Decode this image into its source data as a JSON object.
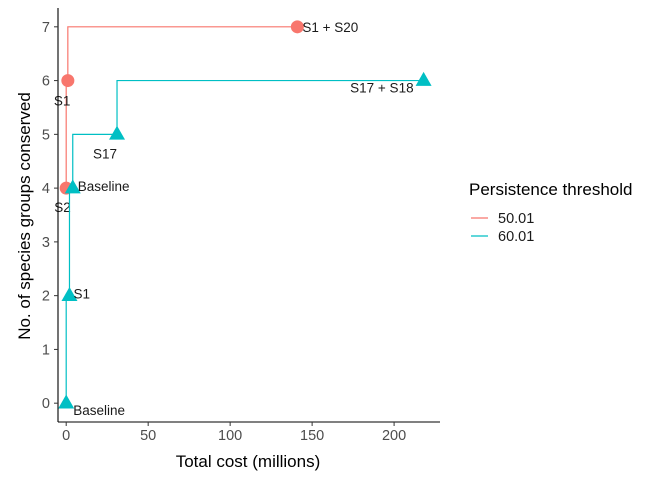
{
  "chart_data": {
    "type": "line",
    "title": "",
    "xlabel": "Total cost (millions)",
    "ylabel": "No. of species groups conserved",
    "xlim": [
      -5,
      228
    ],
    "ylim": [
      -0.35,
      7.35
    ],
    "xticks": [
      0,
      50,
      100,
      150,
      200
    ],
    "yticks": [
      0,
      1,
      2,
      3,
      4,
      5,
      6,
      7
    ],
    "grid": false,
    "legend": {
      "title": "Persistence threshold",
      "position": "right"
    },
    "series": [
      {
        "name": "50.01",
        "color": "#F8766D",
        "marker": "circle",
        "step": "vh",
        "points": [
          {
            "x": 0,
            "y": 4,
            "label": "S2"
          },
          {
            "x": 1,
            "y": 6,
            "label": "S1"
          },
          {
            "x": 141,
            "y": 7,
            "label": "S1 + S20"
          }
        ]
      },
      {
        "name": "60.01",
        "color": "#00BFC4",
        "marker": "triangle",
        "step": "vh",
        "points": [
          {
            "x": 0,
            "y": 0,
            "label": "Baseline"
          },
          {
            "x": 2,
            "y": 2,
            "label": "S1"
          },
          {
            "x": 4,
            "y": 4,
            "label": "Baseline"
          },
          {
            "x": 31,
            "y": 5,
            "label": "S17"
          },
          {
            "x": 218,
            "y": 6,
            "label": "S17 + S18"
          }
        ]
      }
    ]
  }
}
